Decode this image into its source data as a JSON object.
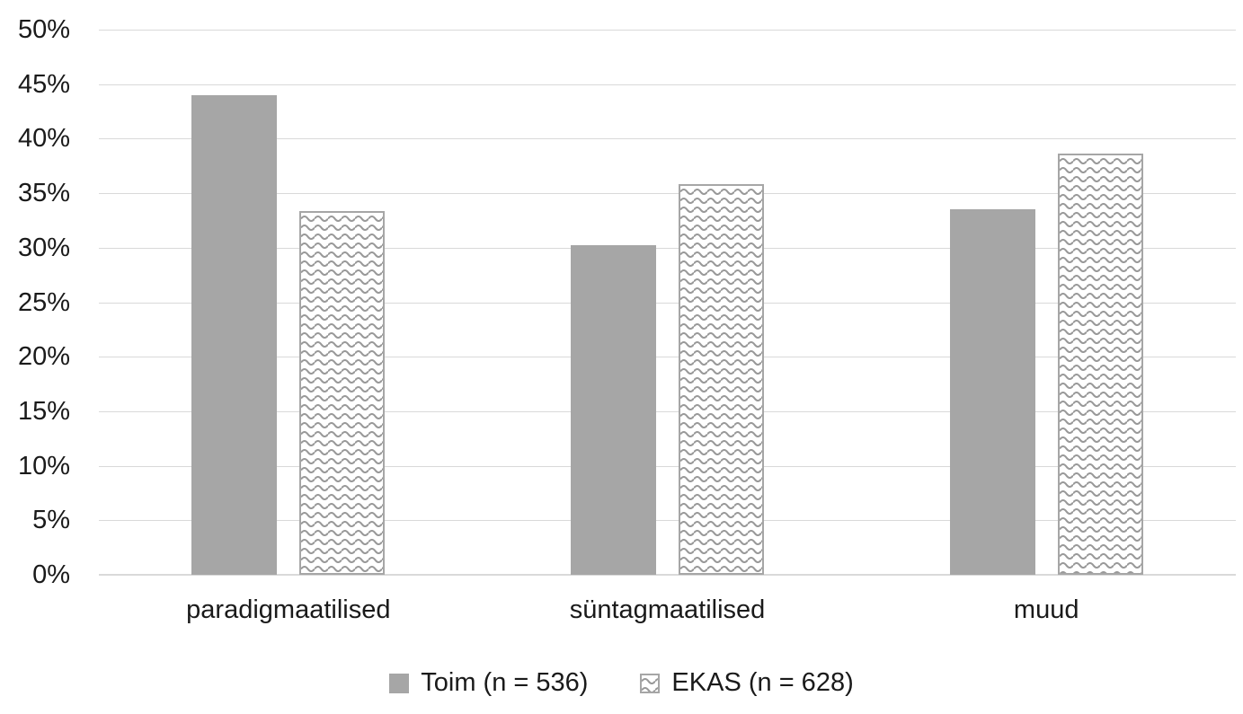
{
  "chart_data": {
    "type": "bar",
    "title": "",
    "xlabel": "",
    "ylabel": "",
    "categories": [
      "paradigmaatilised",
      "süntagmaatilised",
      "muud"
    ],
    "series": [
      {
        "key": "toim",
        "name": "Toim (n = 536)",
        "fill": "solid",
        "values": [
          44.0,
          30.2,
          33.5
        ]
      },
      {
        "key": "ekas",
        "name": "EKAS (n = 628)",
        "fill": "wave-pattern",
        "values": [
          33.4,
          35.8,
          38.6
        ]
      }
    ],
    "ylim": [
      0,
      50
    ],
    "ytick_step": 5,
    "ytick_suffix": "%",
    "grid": "horizontal",
    "legend_position": "bottom",
    "colors": {
      "bar_solid": "#a6a6a6",
      "pattern_stroke": "#999999",
      "pattern_border": "#a6a6a6",
      "gridline": "#d9d9d9",
      "text": "#1a1a1a",
      "background": "#ffffff"
    }
  }
}
